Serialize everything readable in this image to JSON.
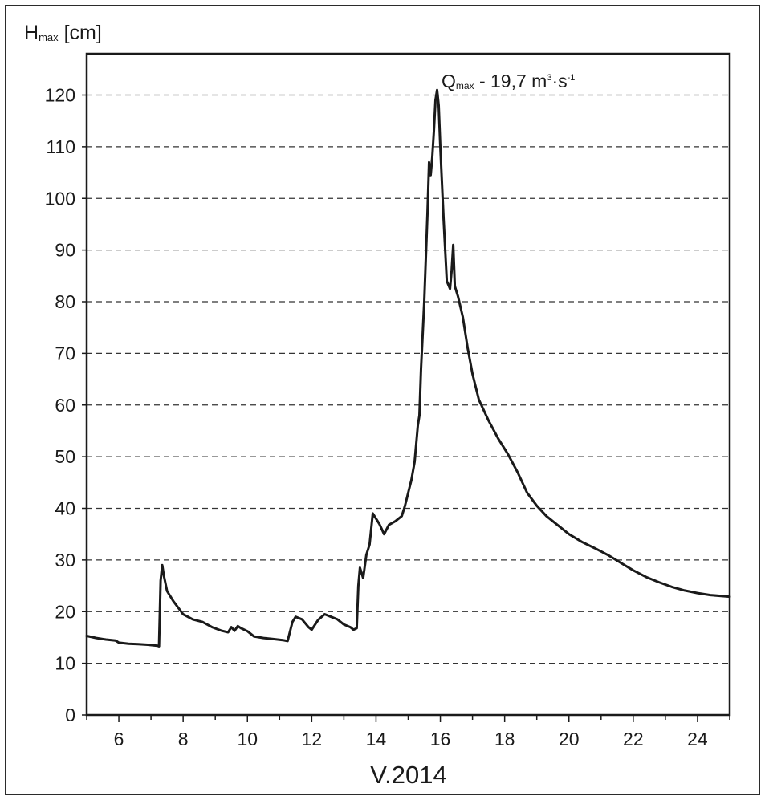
{
  "chart_data": {
    "type": "line",
    "ylabel_main": "H",
    "ylabel_sub": "max",
    "ylabel_unit": "[cm]",
    "xlabel": "V.2014",
    "xlim": [
      5,
      25
    ],
    "ylim": [
      0,
      128
    ],
    "x_ticks": [
      6,
      8,
      10,
      12,
      14,
      16,
      18,
      20,
      22,
      24
    ],
    "y_ticks": [
      0,
      10,
      20,
      30,
      40,
      50,
      60,
      70,
      80,
      90,
      100,
      110,
      120
    ],
    "grid": "horizontal dashed",
    "annotation": {
      "q": "Q",
      "q_sub": "max",
      "text_a": " - 19,7 m",
      "sup_a": "3",
      "dot": "·",
      "text_b": "s",
      "sup_b": "-1"
    },
    "series": [
      {
        "color": "#1a1a1a",
        "points": [
          [
            5.0,
            15.3
          ],
          [
            5.3,
            14.9
          ],
          [
            5.6,
            14.6
          ],
          [
            5.9,
            14.4
          ],
          [
            6.0,
            14.0
          ],
          [
            6.3,
            13.8
          ],
          [
            6.6,
            13.7
          ],
          [
            6.9,
            13.6
          ],
          [
            7.2,
            13.4
          ],
          [
            7.25,
            13.3
          ],
          [
            7.3,
            26.0
          ],
          [
            7.35,
            29.0
          ],
          [
            7.4,
            27.0
          ],
          [
            7.5,
            24.0
          ],
          [
            7.7,
            22.0
          ],
          [
            8.0,
            19.5
          ],
          [
            8.3,
            18.5
          ],
          [
            8.6,
            18.0
          ],
          [
            8.9,
            17.0
          ],
          [
            9.2,
            16.3
          ],
          [
            9.4,
            16.0
          ],
          [
            9.5,
            17.0
          ],
          [
            9.6,
            16.3
          ],
          [
            9.7,
            17.2
          ],
          [
            9.8,
            16.8
          ],
          [
            10.0,
            16.2
          ],
          [
            10.2,
            15.2
          ],
          [
            10.5,
            14.9
          ],
          [
            10.8,
            14.7
          ],
          [
            11.1,
            14.5
          ],
          [
            11.25,
            14.3
          ],
          [
            11.4,
            18.0
          ],
          [
            11.5,
            19.0
          ],
          [
            11.7,
            18.5
          ],
          [
            11.9,
            17.0
          ],
          [
            12.0,
            16.5
          ],
          [
            12.2,
            18.4
          ],
          [
            12.4,
            19.5
          ],
          [
            12.6,
            19.0
          ],
          [
            12.8,
            18.5
          ],
          [
            13.0,
            17.5
          ],
          [
            13.2,
            17.0
          ],
          [
            13.3,
            16.5
          ],
          [
            13.4,
            16.8
          ],
          [
            13.45,
            25.0
          ],
          [
            13.5,
            28.5
          ],
          [
            13.6,
            26.5
          ],
          [
            13.7,
            31.0
          ],
          [
            13.8,
            33.0
          ],
          [
            13.85,
            36.0
          ],
          [
            13.9,
            39.0
          ],
          [
            14.1,
            37.0
          ],
          [
            14.25,
            35.0
          ],
          [
            14.4,
            36.8
          ],
          [
            14.6,
            37.5
          ],
          [
            14.8,
            38.5
          ],
          [
            14.9,
            40.5
          ],
          [
            15.0,
            43.0
          ],
          [
            15.1,
            45.5
          ],
          [
            15.2,
            49.0
          ],
          [
            15.3,
            56.0
          ],
          [
            15.35,
            58.0
          ],
          [
            15.4,
            67.0
          ],
          [
            15.5,
            80.0
          ],
          [
            15.6,
            97.0
          ],
          [
            15.65,
            107.0
          ],
          [
            15.7,
            104.5
          ],
          [
            15.75,
            108.0
          ],
          [
            15.8,
            113.0
          ],
          [
            15.85,
            119.0
          ],
          [
            15.9,
            121.0
          ],
          [
            15.95,
            118.0
          ],
          [
            16.0,
            110.0
          ],
          [
            16.1,
            96.0
          ],
          [
            16.2,
            84.0
          ],
          [
            16.3,
            82.5
          ],
          [
            16.35,
            86.0
          ],
          [
            16.4,
            91.0
          ],
          [
            16.45,
            83.0
          ],
          [
            16.55,
            81.0
          ],
          [
            16.7,
            77.0
          ],
          [
            16.85,
            71.0
          ],
          [
            17.0,
            66.0
          ],
          [
            17.2,
            61.0
          ],
          [
            17.5,
            57.0
          ],
          [
            17.8,
            53.5
          ],
          [
            18.1,
            50.5
          ],
          [
            18.4,
            47.0
          ],
          [
            18.7,
            43.0
          ],
          [
            19.0,
            40.5
          ],
          [
            19.3,
            38.5
          ],
          [
            19.6,
            37.0
          ],
          [
            20.0,
            35.0
          ],
          [
            20.4,
            33.5
          ],
          [
            20.8,
            32.3
          ],
          [
            21.2,
            31.0
          ],
          [
            21.6,
            29.5
          ],
          [
            22.0,
            28.0
          ],
          [
            22.4,
            26.7
          ],
          [
            22.8,
            25.7
          ],
          [
            23.2,
            24.8
          ],
          [
            23.6,
            24.1
          ],
          [
            24.0,
            23.6
          ],
          [
            24.4,
            23.2
          ],
          [
            25.0,
            22.9
          ]
        ]
      }
    ]
  }
}
